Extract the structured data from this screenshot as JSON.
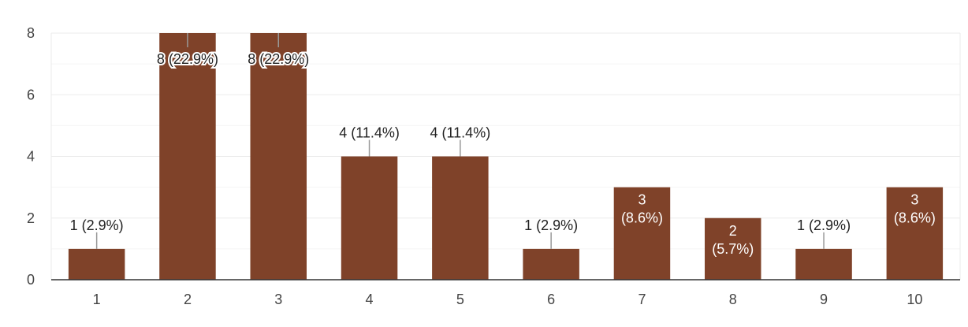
{
  "chart_data": {
    "type": "bar",
    "categories": [
      "1",
      "2",
      "3",
      "4",
      "5",
      "6",
      "7",
      "8",
      "9",
      "10"
    ],
    "values": [
      1,
      8,
      8,
      4,
      4,
      1,
      3,
      2,
      1,
      3
    ],
    "data_labels": [
      "1 (2.9%)",
      "8 (22.9%)",
      "8 (22.9%)",
      "4 (11.4%)",
      "4 (11.4%)",
      "1 (2.9%)",
      "3 (8.6%)",
      "2 (5.7%)",
      "1 (2.9%)",
      "3 (8.6%)"
    ],
    "y_ticks": [
      "0",
      "2",
      "4",
      "6",
      "8"
    ],
    "ylim": [
      0,
      8
    ],
    "grid": true,
    "bar_color": "#7f4229",
    "gridline_color": "#ebebeb",
    "minor_gridline_color": "#f4f4f4",
    "axis_color": "#333333"
  }
}
